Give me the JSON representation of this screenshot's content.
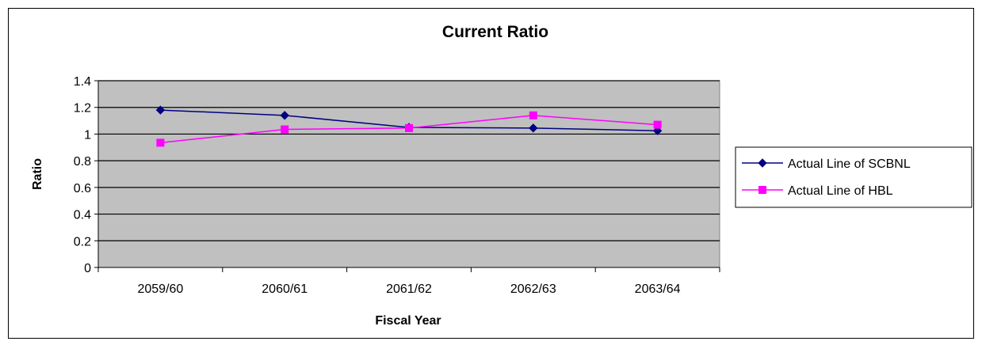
{
  "chart_data": {
    "type": "line",
    "title": "Current Ratio",
    "xlabel": "Fiscal Year",
    "ylabel": "Ratio",
    "categories": [
      "2059/60",
      "2060/61",
      "2061/62",
      "2062/63",
      "2063/64"
    ],
    "ylim": [
      0,
      1.4
    ],
    "yticks": [
      0,
      0.2,
      0.4,
      0.6,
      0.8,
      1,
      1.2,
      1.4
    ],
    "ytick_labels": [
      "0",
      "0.2",
      "0.4",
      "0.6",
      "0.8",
      "1",
      "1.2",
      "1.4"
    ],
    "grid": true,
    "plot_background": "#c0c0c0",
    "legend_position": "right",
    "series": [
      {
        "name": "Actual Line of SCBNL",
        "values": [
          1.18,
          1.14,
          1.05,
          1.045,
          1.025
        ],
        "color": "#000080",
        "marker": "diamond"
      },
      {
        "name": "Actual Line of HBL",
        "values": [
          0.935,
          1.035,
          1.045,
          1.14,
          1.07
        ],
        "color": "#ff00ff",
        "marker": "square"
      }
    ]
  }
}
